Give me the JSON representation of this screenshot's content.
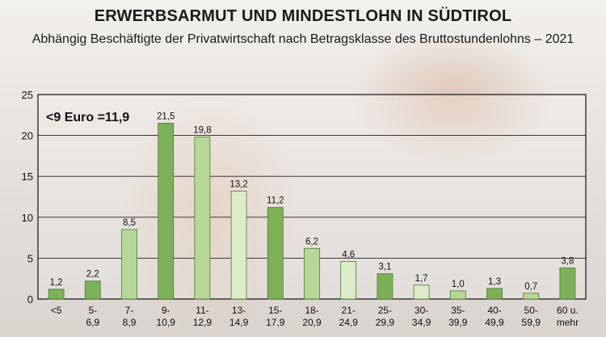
{
  "title": "ERWERBSARMUT UND MINDESTLOHN IN SÜDTIROL",
  "subtitle": "Abhängig Beschäftigte der Privatwirtschaft nach Betragsklasse des Bruttostundenlohns – 2021",
  "chart_data": {
    "type": "bar",
    "categories": [
      [
        "<5"
      ],
      [
        "5-",
        "6,9"
      ],
      [
        "7-",
        "8,9"
      ],
      [
        "9-",
        "10,9"
      ],
      [
        "11-",
        "12,9"
      ],
      [
        "13-",
        "14,9"
      ],
      [
        "15-",
        "17,9"
      ],
      [
        "18-",
        "20,9"
      ],
      [
        "21-",
        "24,9"
      ],
      [
        "25-",
        "29,9"
      ],
      [
        "30-",
        "34,9"
      ],
      [
        "35-",
        "39,9"
      ],
      [
        "40-",
        "49,9"
      ],
      [
        "50-",
        "59,9"
      ],
      [
        "60 u.",
        "mehr"
      ]
    ],
    "values": [
      1.2,
      2.2,
      8.5,
      21.5,
      19.8,
      13.2,
      11.2,
      6.2,
      4.6,
      3.1,
      1.7,
      1.0,
      1.3,
      0.7,
      3.8
    ],
    "value_labels": [
      "1,2",
      "2,2",
      "8,5",
      "21,5",
      "19,8",
      "13,2",
      "11,2",
      "6,2",
      "4,6",
      "3,1",
      "1,7",
      "1,0",
      "1,3",
      "0,7",
      "3,8"
    ],
    "bar_colors": [
      "#7cb15a",
      "#7cb15a",
      "#b7d799",
      "#7cb15a",
      "#b7d799",
      "#dcecc9",
      "#7cb15a",
      "#b7d799",
      "#dcecc9",
      "#7cb15a",
      "#dcecc9",
      "#b7d799",
      "#7cb15a",
      "#b7d799",
      "#7cb15a"
    ],
    "bar_stroke": "#4d7a33",
    "ylim": [
      0,
      25
    ],
    "yticks": [
      0,
      5,
      10,
      15,
      20,
      25
    ],
    "grid": true,
    "annotation": "<9 Euro =11,9"
  }
}
